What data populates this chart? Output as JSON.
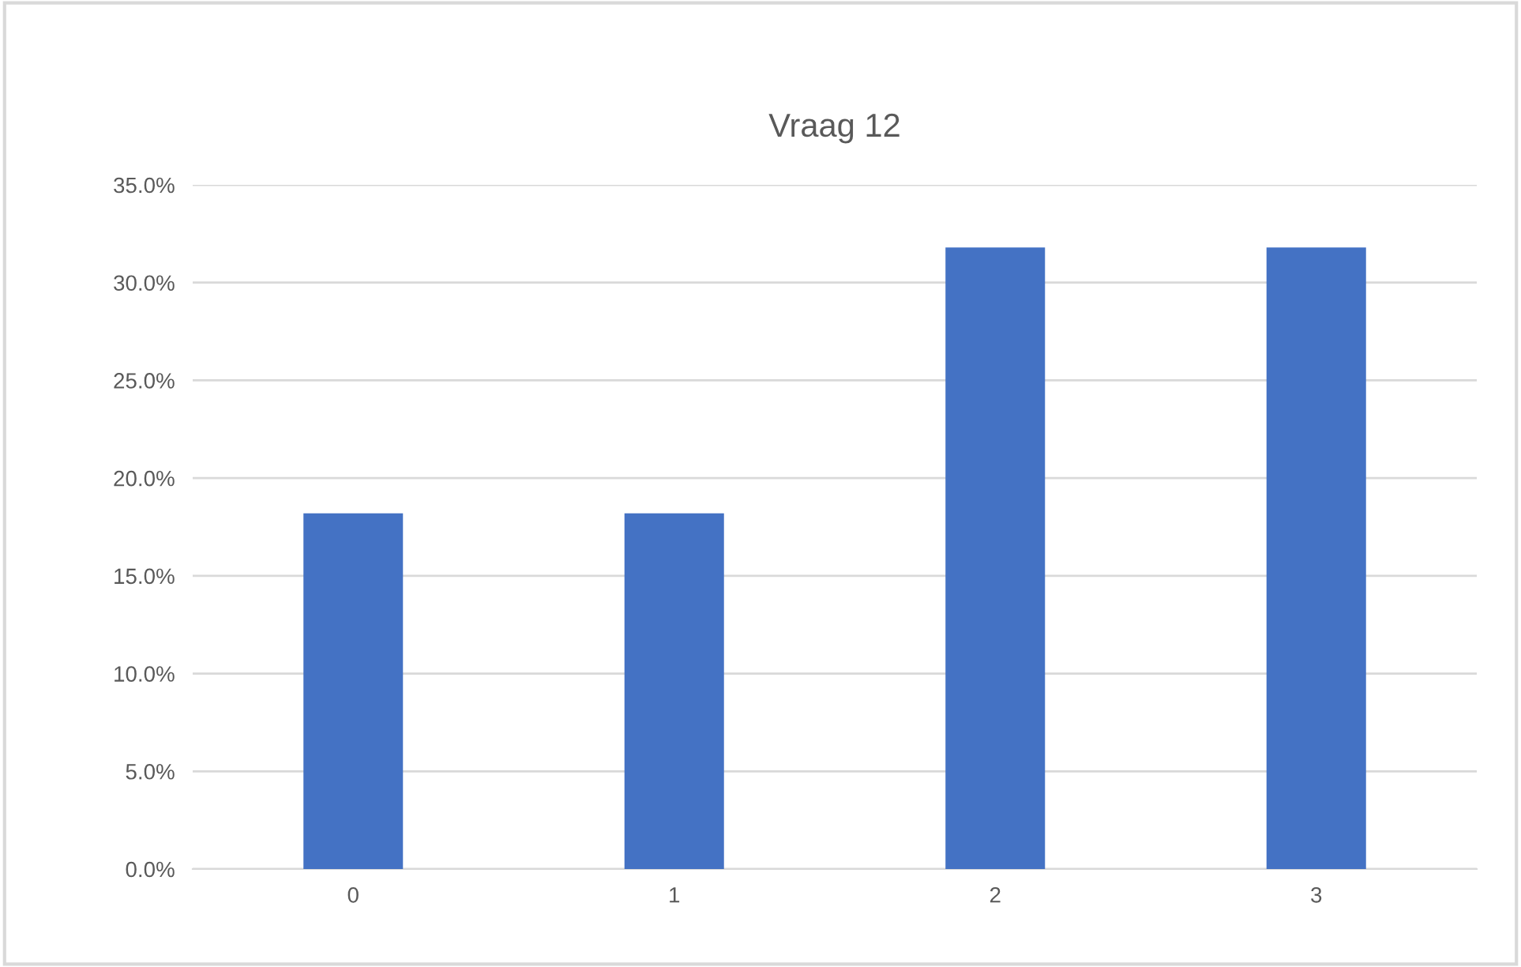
{
  "chart_data": {
    "type": "bar",
    "title": "Vraag 12",
    "categories": [
      "0",
      "1",
      "2",
      "3"
    ],
    "values": [
      18.2,
      18.2,
      31.8,
      31.8
    ],
    "color": "#4472c4",
    "ylim": [
      0,
      35
    ],
    "yticks": [
      {
        "value": 0,
        "label": "0.0%"
      },
      {
        "value": 5,
        "label": "5.0%"
      },
      {
        "value": 10,
        "label": "10.0%"
      },
      {
        "value": 15,
        "label": "15.0%"
      },
      {
        "value": 20,
        "label": "20.0%"
      },
      {
        "value": 25,
        "label": "25.0%"
      },
      {
        "value": 30,
        "label": "30.0%"
      },
      {
        "value": 35,
        "label": "35.0%"
      }
    ],
    "grid": "y",
    "legend": false
  }
}
